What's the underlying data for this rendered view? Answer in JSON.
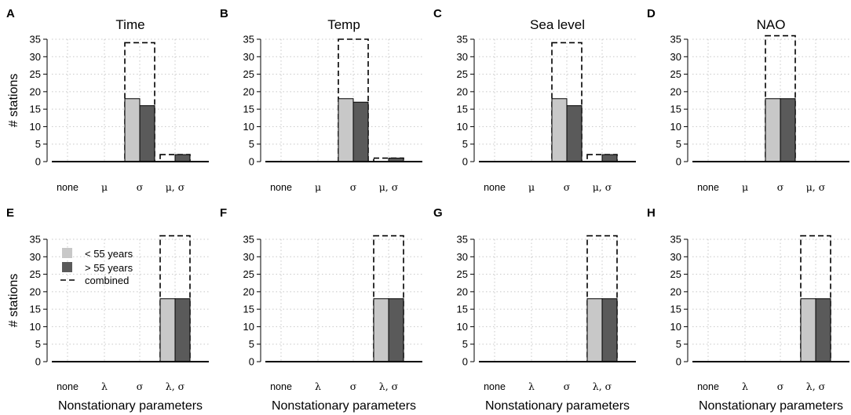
{
  "chart_data": [
    {
      "panel": "A",
      "type": "bar",
      "title": "Time",
      "ylabel": "# stations",
      "xlabel": "",
      "categories": [
        "none",
        "μ",
        "σ",
        "μ, σ"
      ],
      "ylim": [
        0,
        35
      ],
      "yticks": [
        0,
        5,
        10,
        15,
        20,
        25,
        30,
        35
      ],
      "series": [
        {
          "name": "< 55 years",
          "values": [
            0,
            0,
            18,
            0
          ]
        },
        {
          "name": "> 55 years",
          "values": [
            0,
            0,
            16,
            2
          ]
        },
        {
          "name": "combined",
          "values": [
            0,
            0,
            34,
            2
          ]
        }
      ]
    },
    {
      "panel": "B",
      "type": "bar",
      "title": "Temp",
      "ylabel": "",
      "xlabel": "",
      "categories": [
        "none",
        "μ",
        "σ",
        "μ, σ"
      ],
      "ylim": [
        0,
        35
      ],
      "yticks": [
        0,
        5,
        10,
        15,
        20,
        25,
        30,
        35
      ],
      "series": [
        {
          "name": "< 55 years",
          "values": [
            0,
            0,
            18,
            0
          ]
        },
        {
          "name": "> 55 years",
          "values": [
            0,
            0,
            17,
            1
          ]
        },
        {
          "name": "combined",
          "values": [
            0,
            0,
            35,
            1
          ]
        }
      ]
    },
    {
      "panel": "C",
      "type": "bar",
      "title": "Sea level",
      "ylabel": "",
      "xlabel": "",
      "categories": [
        "none",
        "μ",
        "σ",
        "μ, σ"
      ],
      "ylim": [
        0,
        35
      ],
      "yticks": [
        0,
        5,
        10,
        15,
        20,
        25,
        30,
        35
      ],
      "series": [
        {
          "name": "< 55 years",
          "values": [
            0,
            0,
            18,
            0
          ]
        },
        {
          "name": "> 55 years",
          "values": [
            0,
            0,
            16,
            2
          ]
        },
        {
          "name": "combined",
          "values": [
            0,
            0,
            34,
            2
          ]
        }
      ]
    },
    {
      "panel": "D",
      "type": "bar",
      "title": "NAO",
      "ylabel": "",
      "xlabel": "",
      "categories": [
        "none",
        "μ",
        "σ",
        "μ, σ"
      ],
      "ylim": [
        0,
        35
      ],
      "yticks": [
        0,
        5,
        10,
        15,
        20,
        25,
        30,
        35
      ],
      "series": [
        {
          "name": "< 55 years",
          "values": [
            0,
            0,
            18,
            0
          ]
        },
        {
          "name": "> 55 years",
          "values": [
            0,
            0,
            18,
            0
          ]
        },
        {
          "name": "combined",
          "values": [
            0,
            0,
            36,
            0
          ]
        }
      ]
    },
    {
      "panel": "E",
      "type": "bar",
      "title": "",
      "ylabel": "# stations",
      "xlabel": "Nonstationary parameters",
      "categories": [
        "none",
        "λ",
        "σ",
        "λ, σ"
      ],
      "ylim": [
        0,
        35
      ],
      "yticks": [
        0,
        5,
        10,
        15,
        20,
        25,
        30,
        35
      ],
      "legend": {
        "position": "top-left",
        "entries": [
          "< 55 years",
          "> 55 years",
          "combined"
        ]
      },
      "series": [
        {
          "name": "< 55 years",
          "values": [
            0,
            0,
            0,
            18
          ]
        },
        {
          "name": "> 55 years",
          "values": [
            0,
            0,
            0,
            18
          ]
        },
        {
          "name": "combined",
          "values": [
            0,
            0,
            0,
            36
          ]
        }
      ]
    },
    {
      "panel": "F",
      "type": "bar",
      "title": "",
      "ylabel": "",
      "xlabel": "Nonstationary parameters",
      "categories": [
        "none",
        "λ",
        "σ",
        "λ, σ"
      ],
      "ylim": [
        0,
        35
      ],
      "yticks": [
        0,
        5,
        10,
        15,
        20,
        25,
        30,
        35
      ],
      "series": [
        {
          "name": "< 55 years",
          "values": [
            0,
            0,
            0,
            18
          ]
        },
        {
          "name": "> 55 years",
          "values": [
            0,
            0,
            0,
            18
          ]
        },
        {
          "name": "combined",
          "values": [
            0,
            0,
            0,
            36
          ]
        }
      ]
    },
    {
      "panel": "G",
      "type": "bar",
      "title": "",
      "ylabel": "",
      "xlabel": "Nonstationary parameters",
      "categories": [
        "none",
        "λ",
        "σ",
        "λ, σ"
      ],
      "ylim": [
        0,
        35
      ],
      "yticks": [
        0,
        5,
        10,
        15,
        20,
        25,
        30,
        35
      ],
      "series": [
        {
          "name": "< 55 years",
          "values": [
            0,
            0,
            0,
            18
          ]
        },
        {
          "name": "> 55 years",
          "values": [
            0,
            0,
            0,
            18
          ]
        },
        {
          "name": "combined",
          "values": [
            0,
            0,
            0,
            36
          ]
        }
      ]
    },
    {
      "panel": "H",
      "type": "bar",
      "title": "",
      "ylabel": "",
      "xlabel": "Nonstationary parameters",
      "categories": [
        "none",
        "λ",
        "σ",
        "λ, σ"
      ],
      "ylim": [
        0,
        35
      ],
      "yticks": [
        0,
        5,
        10,
        15,
        20,
        25,
        30,
        35
      ],
      "series": [
        {
          "name": "< 55 years",
          "values": [
            0,
            0,
            0,
            18
          ]
        },
        {
          "name": "> 55 years",
          "values": [
            0,
            0,
            0,
            18
          ]
        },
        {
          "name": "combined",
          "values": [
            0,
            0,
            0,
            36
          ]
        }
      ]
    }
  ],
  "colors": {
    "light_bar": "#c8c8c8",
    "dark_bar": "#5a5a5a",
    "combined_outline": "#000000",
    "grid": "#c8c8c8"
  }
}
